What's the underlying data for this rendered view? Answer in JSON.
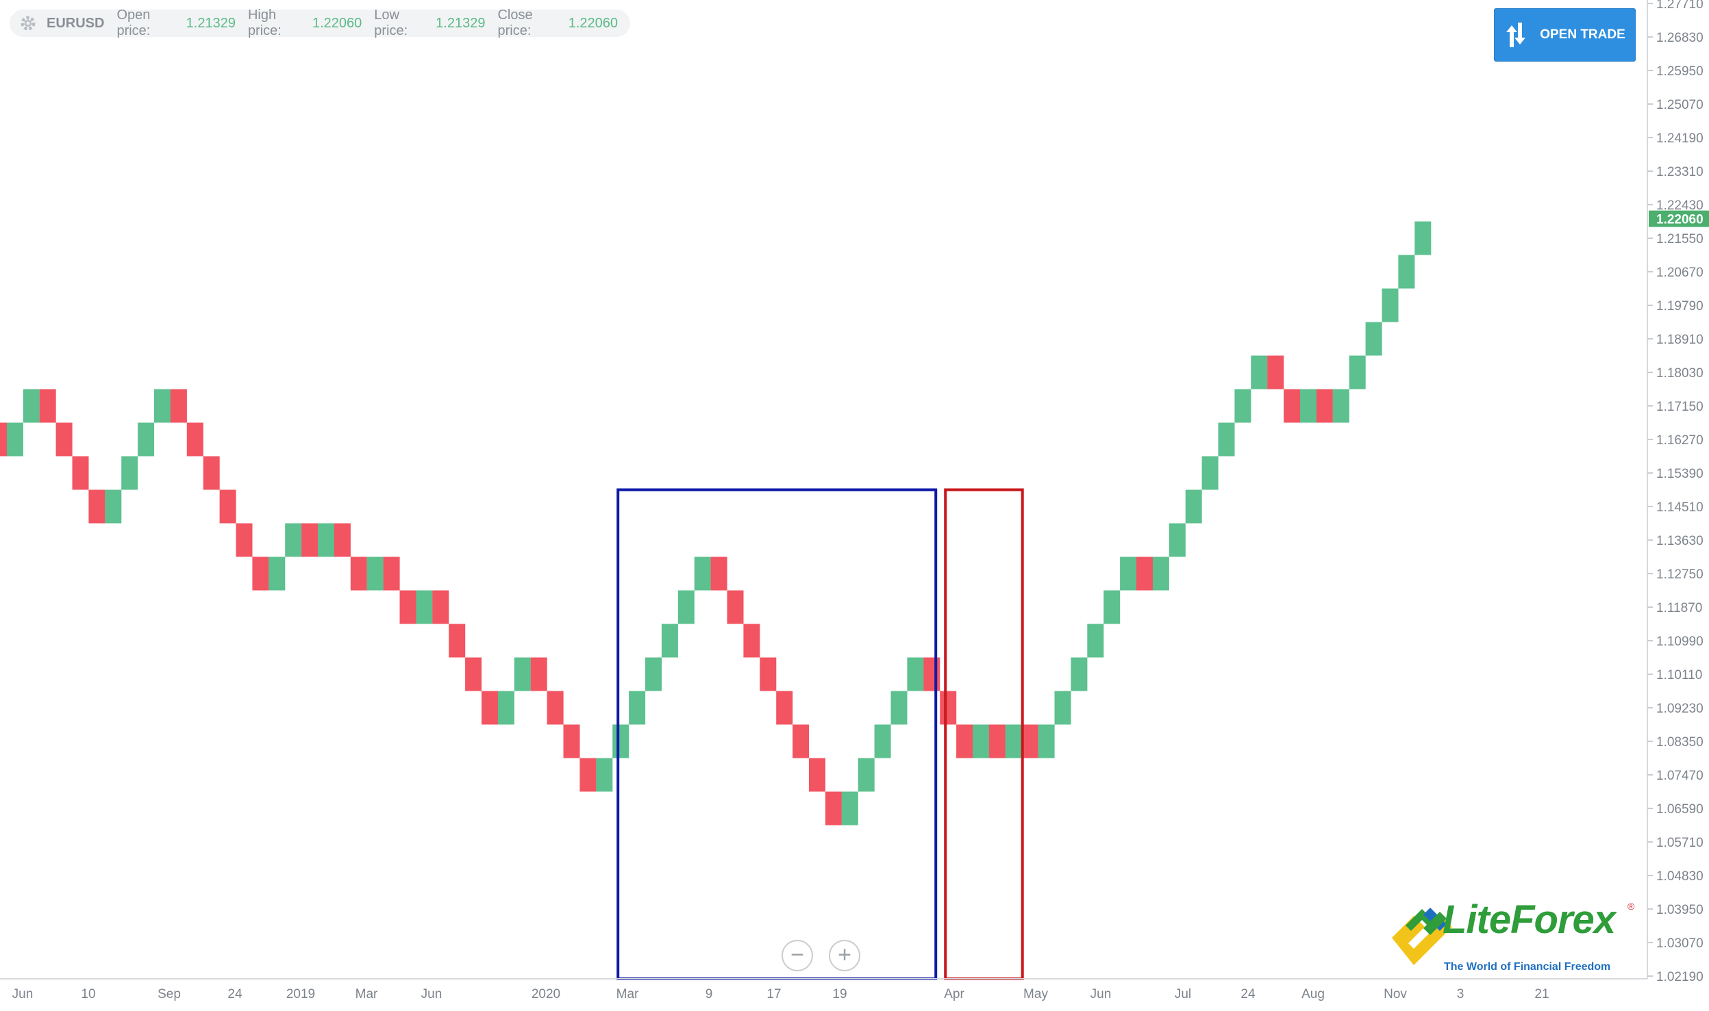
{
  "header": {
    "symbol": "EURUSD",
    "open_label": "Open price:",
    "open_value": "1.21329",
    "high_label": "High price:",
    "high_value": "1.22060",
    "low_label": "Low price:",
    "low_value": "1.21329",
    "close_label": "Close price:",
    "close_value": "1.22060"
  },
  "toolbar": {
    "open_trade_label": "OPEN TRADE"
  },
  "zoom": {
    "minus": "−",
    "plus": "+"
  },
  "logo": {
    "brand": "LiteForex",
    "reg": "®",
    "tagline": "The World of Financial Freedom"
  },
  "colors": {
    "up": "#5cc08f",
    "down": "#f25462",
    "blue_box": "#0f1aa8",
    "red_box": "#c8181c",
    "axis_text": "#7d838b",
    "current_price_bg": "#4caf6e"
  },
  "chart_data": {
    "type": "renko",
    "brick_size": 0.0088,
    "y_ticks": [
      "1.27710",
      "1.26830",
      "1.25950",
      "1.25070",
      "1.24190",
      "1.23310",
      "1.22430",
      "1.21550",
      "1.20670",
      "1.19790",
      "1.18910",
      "1.18030",
      "1.17150",
      "1.16270",
      "1.15390",
      "1.14510",
      "1.13630",
      "1.12750",
      "1.11870",
      "1.10990",
      "1.10110",
      "1.09230",
      "1.08350",
      "1.07470",
      "1.06590",
      "1.05710",
      "1.04830",
      "1.03950",
      "1.03070",
      "1.02190"
    ],
    "current_price": "1.22060",
    "x_labels": [
      "Jun",
      "10",
      "Sep",
      "24",
      "2019",
      "Mar",
      "Jun",
      "2020",
      "Mar",
      "9",
      "17",
      "19",
      "Apr",
      "May",
      "Jun",
      "Jul",
      "24",
      "Aug",
      "Nov",
      "3",
      "21"
    ],
    "bricks": [
      {
        "dir": "down",
        "level": 1.1583
      },
      {
        "dir": "up",
        "level": 1.1671
      },
      {
        "dir": "up",
        "level": 1.1759
      },
      {
        "dir": "down",
        "level": 1.1671
      },
      {
        "dir": "down",
        "level": 1.1583
      },
      {
        "dir": "down",
        "level": 1.1495
      },
      {
        "dir": "down",
        "level": 1.1407
      },
      {
        "dir": "up",
        "level": 1.1495
      },
      {
        "dir": "up",
        "level": 1.1583
      },
      {
        "dir": "up",
        "level": 1.1671
      },
      {
        "dir": "up",
        "level": 1.1759
      },
      {
        "dir": "down",
        "level": 1.1671
      },
      {
        "dir": "down",
        "level": 1.1583
      },
      {
        "dir": "down",
        "level": 1.1495
      },
      {
        "dir": "down",
        "level": 1.1407
      },
      {
        "dir": "down",
        "level": 1.1319
      },
      {
        "dir": "down",
        "level": 1.1231
      },
      {
        "dir": "up",
        "level": 1.1319
      },
      {
        "dir": "up",
        "level": 1.1407
      },
      {
        "dir": "down",
        "level": 1.1319
      },
      {
        "dir": "up",
        "level": 1.1407
      },
      {
        "dir": "down",
        "level": 1.1319
      },
      {
        "dir": "down",
        "level": 1.1231
      },
      {
        "dir": "up",
        "level": 1.1319
      },
      {
        "dir": "down",
        "level": 1.1231
      },
      {
        "dir": "down",
        "level": 1.1143
      },
      {
        "dir": "up",
        "level": 1.1231
      },
      {
        "dir": "down",
        "level": 1.1143
      },
      {
        "dir": "down",
        "level": 1.1055
      },
      {
        "dir": "down",
        "level": 1.0967
      },
      {
        "dir": "down",
        "level": 1.0879
      },
      {
        "dir": "up",
        "level": 1.0967
      },
      {
        "dir": "up",
        "level": 1.1055
      },
      {
        "dir": "down",
        "level": 1.0967
      },
      {
        "dir": "down",
        "level": 1.0879
      },
      {
        "dir": "down",
        "level": 1.0791
      },
      {
        "dir": "down",
        "level": 1.0703
      },
      {
        "dir": "up",
        "level": 1.0791
      },
      {
        "dir": "up",
        "level": 1.0879
      },
      {
        "dir": "up",
        "level": 1.0967
      },
      {
        "dir": "up",
        "level": 1.1055
      },
      {
        "dir": "up",
        "level": 1.1143
      },
      {
        "dir": "up",
        "level": 1.1231
      },
      {
        "dir": "up",
        "level": 1.1319
      },
      {
        "dir": "down",
        "level": 1.1231
      },
      {
        "dir": "down",
        "level": 1.1143
      },
      {
        "dir": "down",
        "level": 1.1055
      },
      {
        "dir": "down",
        "level": 1.0967
      },
      {
        "dir": "down",
        "level": 1.0879
      },
      {
        "dir": "down",
        "level": 1.0791
      },
      {
        "dir": "down",
        "level": 1.0703
      },
      {
        "dir": "down",
        "level": 1.0615
      },
      {
        "dir": "up",
        "level": 1.0703
      },
      {
        "dir": "up",
        "level": 1.0791
      },
      {
        "dir": "up",
        "level": 1.0879
      },
      {
        "dir": "up",
        "level": 1.0967
      },
      {
        "dir": "up",
        "level": 1.1055
      },
      {
        "dir": "down",
        "level": 1.0967
      },
      {
        "dir": "down",
        "level": 1.0879
      },
      {
        "dir": "down",
        "level": 1.0791
      },
      {
        "dir": "up",
        "level": 1.0879
      },
      {
        "dir": "down",
        "level": 1.0791
      },
      {
        "dir": "up",
        "level": 1.0879
      },
      {
        "dir": "down",
        "level": 1.0791
      },
      {
        "dir": "up",
        "level": 1.0879
      },
      {
        "dir": "up",
        "level": 1.0967
      },
      {
        "dir": "up",
        "level": 1.1055
      },
      {
        "dir": "up",
        "level": 1.1143
      },
      {
        "dir": "up",
        "level": 1.1231
      },
      {
        "dir": "up",
        "level": 1.1319
      },
      {
        "dir": "down",
        "level": 1.1231
      },
      {
        "dir": "up",
        "level": 1.1319
      },
      {
        "dir": "up",
        "level": 1.1407
      },
      {
        "dir": "up",
        "level": 1.1495
      },
      {
        "dir": "up",
        "level": 1.1583
      },
      {
        "dir": "up",
        "level": 1.1671
      },
      {
        "dir": "up",
        "level": 1.1759
      },
      {
        "dir": "up",
        "level": 1.1847
      },
      {
        "dir": "down",
        "level": 1.1759
      },
      {
        "dir": "down",
        "level": 1.1671
      },
      {
        "dir": "up",
        "level": 1.1759
      },
      {
        "dir": "down",
        "level": 1.1671
      },
      {
        "dir": "up",
        "level": 1.1759
      },
      {
        "dir": "up",
        "level": 1.1847
      },
      {
        "dir": "up",
        "level": 1.1935
      },
      {
        "dir": "up",
        "level": 1.2023
      },
      {
        "dir": "up",
        "level": 1.2111
      },
      {
        "dir": "up",
        "level": 1.2199
      }
    ],
    "highlight_boxes": [
      {
        "color": "blue",
        "from_brick": 38,
        "to_brick": 57,
        "top_level": 1.1495
      },
      {
        "color": "red",
        "from_brick": 58,
        "to_brick": 62,
        "top_level": 1.1495
      }
    ]
  }
}
